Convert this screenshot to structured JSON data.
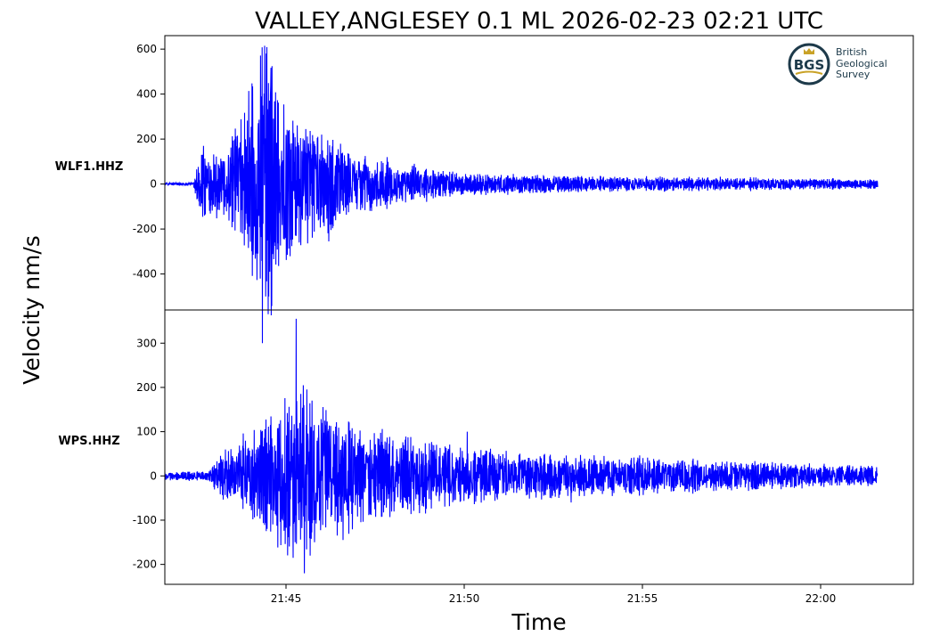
{
  "chart_data": {
    "type": "line",
    "title": "VALLEY,ANGLESEY 0.1 ML   2026-02-23 02:21 UTC",
    "xlabel": "Time",
    "ylabel": "Velocity nm/s",
    "grid": false,
    "line_color": "#0000ff",
    "x_ticks": [
      "21:45",
      "21:50",
      "21:55",
      "22:00"
    ],
    "xlim": [
      "21:41:36",
      "22:02:36"
    ],
    "logo": {
      "badge": "BGS",
      "lines": [
        "British",
        "Geological",
        "Survey"
      ],
      "ring_color": "#1d3a4a",
      "accent_color": "#c9a227"
    },
    "panels": [
      {
        "station": "WLF1.HHZ",
        "ylim": [
          -560,
          660
        ],
        "y_ticks": [
          "600",
          "400",
          "200",
          "0",
          "-200",
          "-400"
        ],
        "y_tick_values": [
          600,
          400,
          200,
          0,
          -200,
          -400
        ],
        "x_range": [
          "21:41:36",
          "22:01:36"
        ],
        "envelope": [
          [
            "21:41:36",
            5
          ],
          [
            "21:42:24",
            6
          ],
          [
            "21:42:36",
            120
          ],
          [
            "21:43:12",
            110
          ],
          [
            "21:43:48",
            250
          ],
          [
            "21:44:24",
            520
          ],
          [
            "21:44:48",
            300
          ],
          [
            "21:45:24",
            220
          ],
          [
            "21:46:00",
            200
          ],
          [
            "21:46:48",
            120
          ],
          [
            "21:48:00",
            75
          ],
          [
            "21:49:12",
            50
          ],
          [
            "21:50:24",
            38
          ],
          [
            "21:52:00",
            32
          ],
          [
            "21:54:00",
            28
          ],
          [
            "21:56:00",
            25
          ],
          [
            "21:58:00",
            22
          ],
          [
            "22:00:00",
            18
          ],
          [
            "22:01:36",
            15
          ]
        ],
        "peaks": [
          [
            "21:42:41",
            170
          ],
          [
            "21:42:43",
            -140
          ],
          [
            "21:44:24",
            615
          ],
          [
            "21:44:26",
            -500
          ],
          [
            "21:44:31",
            -500
          ],
          [
            "21:44:34",
            435
          ],
          [
            "21:44:41",
            -260
          ],
          [
            "21:45:05",
            240
          ],
          [
            "21:45:17",
            -230
          ],
          [
            "21:46:00",
            220
          ],
          [
            "21:46:12",
            -255
          ],
          [
            "21:46:48",
            115
          ],
          [
            "21:47:24",
            -120
          ],
          [
            "21:48:36",
            90
          ]
        ]
      },
      {
        "station": "WPS.HHZ",
        "ylim": [
          -245,
          375
        ],
        "y_ticks": [
          "300",
          "200",
          "100",
          "0",
          "-100",
          "-200"
        ],
        "y_tick_values": [
          300,
          200,
          100,
          0,
          -100,
          -200
        ],
        "x_range": [
          "21:41:36",
          "22:01:36"
        ],
        "envelope": [
          [
            "21:41:36",
            8
          ],
          [
            "21:42:48",
            8
          ],
          [
            "21:43:12",
            40
          ],
          [
            "21:43:48",
            70
          ],
          [
            "21:44:24",
            95
          ],
          [
            "21:45:00",
            140
          ],
          [
            "21:45:24",
            150
          ],
          [
            "21:46:00",
            120
          ],
          [
            "21:47:00",
            90
          ],
          [
            "21:48:00",
            75
          ],
          [
            "21:49:12",
            60
          ],
          [
            "21:50:24",
            48
          ],
          [
            "21:52:00",
            40
          ],
          [
            "21:54:00",
            35
          ],
          [
            "21:56:00",
            30
          ],
          [
            "21:58:00",
            25
          ],
          [
            "22:00:00",
            20
          ],
          [
            "22:01:36",
            16
          ]
        ],
        "peaks": [
          [
            "21:45:17",
            355
          ],
          [
            "21:45:12",
            -185
          ],
          [
            "21:45:29",
            205
          ],
          [
            "21:45:31",
            -220
          ],
          [
            "21:45:48",
            -150
          ],
          [
            "21:46:05",
            125
          ],
          [
            "21:46:36",
            -145
          ],
          [
            "21:46:00",
            120
          ],
          [
            "21:44:36",
            85
          ],
          [
            "21:50:05",
            100
          ],
          [
            "21:48:00",
            80
          ],
          [
            "21:53:00",
            -60
          ]
        ]
      }
    ]
  }
}
